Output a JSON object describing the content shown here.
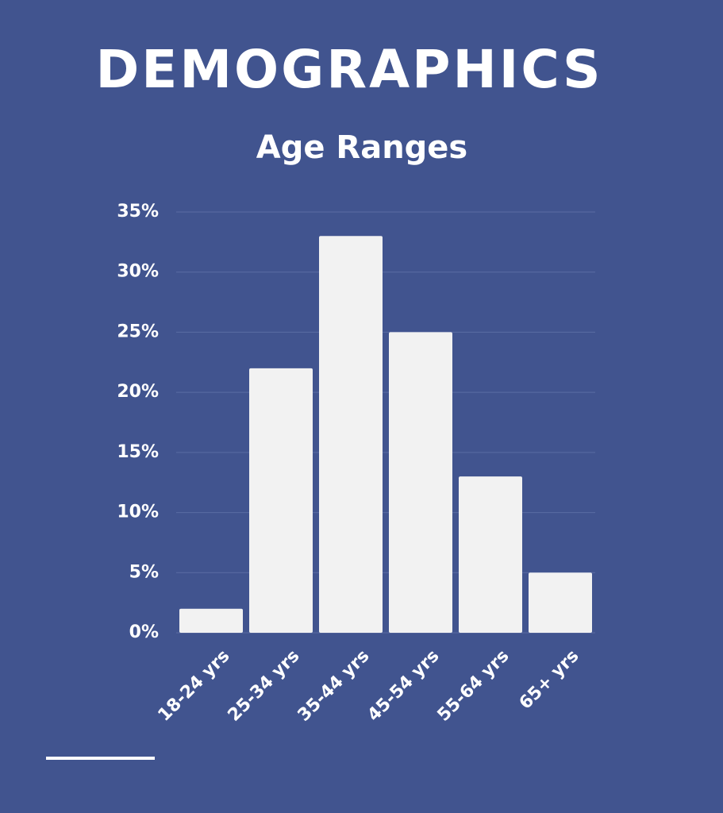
{
  "chart_data": {
    "type": "bar",
    "title": "DEMOGRAPHICS",
    "subtitle": "Age Ranges",
    "categories": [
      "18-24 yrs",
      "25-34 yrs",
      "35-44 yrs",
      "45-54 yrs",
      "55-64 yrs",
      "65+ yrs"
    ],
    "values": [
      2,
      22,
      33,
      25,
      13,
      5
    ],
    "color": "#f2f2f2",
    "ylim": [
      0,
      35
    ],
    "yticks": [
      {
        "value": 0,
        "label": "0%"
      },
      {
        "value": 5,
        "label": "5%"
      },
      {
        "value": 10,
        "label": "10%"
      },
      {
        "value": 15,
        "label": "15%"
      },
      {
        "value": 20,
        "label": "20%"
      },
      {
        "value": 25,
        "label": "25%"
      },
      {
        "value": 30,
        "label": "30%"
      },
      {
        "value": 35,
        "label": "35%"
      }
    ],
    "grid": true
  }
}
